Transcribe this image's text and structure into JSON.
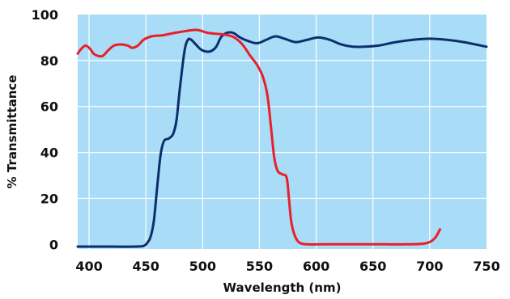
{
  "chart_data": {
    "type": "line",
    "title": "",
    "xlabel": "Wavelength (nm)",
    "ylabel": "% Transmittance",
    "xlim": [
      390,
      750
    ],
    "ylim": [
      -2,
      100
    ],
    "grid": true,
    "x_ticks": [
      400,
      450,
      500,
      550,
      600,
      650,
      700,
      750
    ],
    "y_ticks": [
      0,
      20,
      40,
      60,
      80,
      100
    ],
    "plot_background": "#a9dcf7",
    "grid_color": "#ffffff",
    "series": [
      {
        "color": "#0d2e6e",
        "points": [
          [
            390,
            -1
          ],
          [
            420,
            -1
          ],
          [
            440,
            -1
          ],
          [
            448,
            -0.7
          ],
          [
            451,
            0.5
          ],
          [
            454,
            3
          ],
          [
            457,
            10
          ],
          [
            460,
            25
          ],
          [
            463,
            39
          ],
          [
            466,
            45
          ],
          [
            470,
            46
          ],
          [
            474,
            48
          ],
          [
            477,
            54
          ],
          [
            480,
            68
          ],
          [
            484,
            84
          ],
          [
            487,
            89
          ],
          [
            490,
            89
          ],
          [
            494,
            87
          ],
          [
            498,
            85
          ],
          [
            502,
            84
          ],
          [
            507,
            84
          ],
          [
            512,
            86
          ],
          [
            516,
            90
          ],
          [
            521,
            92
          ],
          [
            527,
            92
          ],
          [
            533,
            90
          ],
          [
            540,
            88.5
          ],
          [
            548,
            87.5
          ],
          [
            556,
            89
          ],
          [
            564,
            90.5
          ],
          [
            572,
            89.5
          ],
          [
            582,
            88
          ],
          [
            592,
            89
          ],
          [
            602,
            90
          ],
          [
            612,
            89
          ],
          [
            622,
            87
          ],
          [
            632,
            86
          ],
          [
            642,
            86
          ],
          [
            655,
            86.5
          ],
          [
            670,
            88
          ],
          [
            685,
            89
          ],
          [
            700,
            89.5
          ],
          [
            715,
            89
          ],
          [
            730,
            88
          ],
          [
            750,
            86
          ]
        ]
      },
      {
        "color": "#e8202a",
        "points": [
          [
            390,
            83
          ],
          [
            393,
            85
          ],
          [
            397,
            86.5
          ],
          [
            401,
            85
          ],
          [
            404,
            83
          ],
          [
            408,
            82
          ],
          [
            412,
            82
          ],
          [
            417,
            84.5
          ],
          [
            422,
            86.5
          ],
          [
            428,
            87
          ],
          [
            434,
            86.5
          ],
          [
            438,
            85.5
          ],
          [
            443,
            86.5
          ],
          [
            448,
            89
          ],
          [
            455,
            90.5
          ],
          [
            465,
            91
          ],
          [
            475,
            92
          ],
          [
            485,
            92.8
          ],
          [
            495,
            93.3
          ],
          [
            505,
            92
          ],
          [
            515,
            91.5
          ],
          [
            522,
            91
          ],
          [
            528,
            90
          ],
          [
            535,
            87
          ],
          [
            542,
            82
          ],
          [
            548,
            78
          ],
          [
            553,
            73
          ],
          [
            557,
            65
          ],
          [
            560,
            52
          ],
          [
            563,
            38
          ],
          [
            566,
            32
          ],
          [
            570,
            30.5
          ],
          [
            574,
            29
          ],
          [
            576,
            20
          ],
          [
            578,
            10
          ],
          [
            581,
            4
          ],
          [
            585,
            0.8
          ],
          [
            592,
            0
          ],
          [
            605,
            0
          ],
          [
            620,
            0
          ],
          [
            640,
            0
          ],
          [
            660,
            0
          ],
          [
            680,
            0
          ],
          [
            693,
            0.2
          ],
          [
            700,
            1
          ],
          [
            705,
            3
          ],
          [
            709,
            6.5
          ]
        ]
      }
    ]
  }
}
